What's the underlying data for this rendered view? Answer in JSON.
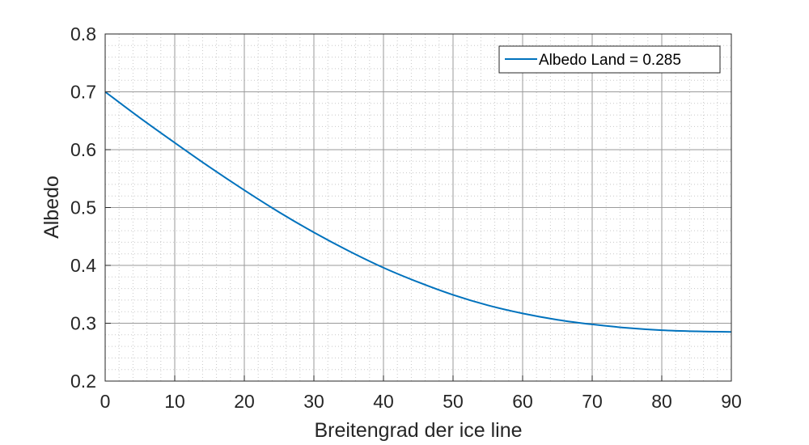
{
  "chart_data": {
    "type": "line",
    "title": "",
    "xlabel": "Breitengrad der ice line",
    "ylabel": "Albedo",
    "xlim": [
      0,
      90
    ],
    "ylim": [
      0.2,
      0.8
    ],
    "xticks": [
      0,
      10,
      20,
      30,
      40,
      50,
      60,
      70,
      80,
      90
    ],
    "yticks": [
      0.2,
      0.3,
      0.4,
      0.5,
      0.6,
      0.7,
      0.8
    ],
    "xtick_labels": [
      "0",
      "10",
      "20",
      "30",
      "40",
      "50",
      "60",
      "70",
      "80",
      "90"
    ],
    "ytick_labels": [
      "0.2",
      "0.3",
      "0.4",
      "0.5",
      "0.6",
      "0.7",
      "0.8"
    ],
    "grid": true,
    "minor_grid": true,
    "legend_position": "top-right",
    "series": [
      {
        "name": "Albedo Land = 0.285",
        "color": "#0072bd",
        "x": [
          0,
          5,
          10,
          15,
          20,
          25,
          30,
          35,
          40,
          45,
          50,
          55,
          60,
          65,
          70,
          75,
          80,
          85,
          90
        ],
        "y": [
          0.7,
          0.655,
          0.612,
          0.57,
          0.53,
          0.492,
          0.457,
          0.425,
          0.396,
          0.371,
          0.349,
          0.331,
          0.317,
          0.306,
          0.298,
          0.292,
          0.288,
          0.286,
          0.285
        ]
      }
    ]
  }
}
